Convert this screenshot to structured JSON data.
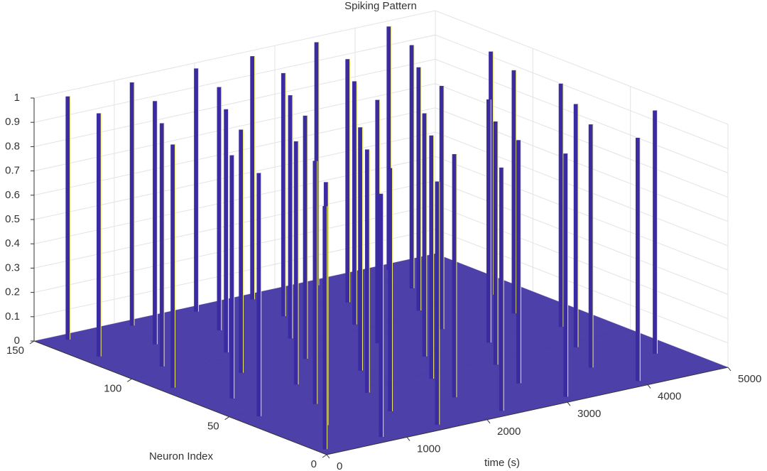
{
  "chart_data": {
    "type": "spikes3d",
    "title": "Spiking Pattern",
    "xlabel": "time (s)",
    "ylabel": "Neuron Index",
    "xlim": [
      0,
      5000
    ],
    "xticks": [
      0,
      1000,
      2000,
      3000,
      4000,
      5000
    ],
    "ylim": [
      0,
      150
    ],
    "yticks": [
      0,
      50,
      100,
      150
    ],
    "zlim": [
      0,
      1
    ],
    "zticks": [
      0,
      0.1,
      0.2,
      0.3,
      0.4,
      0.5,
      0.6,
      0.7,
      0.8,
      0.9,
      1
    ],
    "grid": true,
    "color": "#3a2ca0",
    "edge_color": "#f2ee6a",
    "spikes": {
      "time": [
        300,
        1100,
        1900,
        2600,
        3400,
        4300,
        200,
        900,
        1700,
        2500,
        3300,
        4100,
        500,
        1300,
        2100,
        2900,
        3700,
        4600,
        150,
        1000,
        1800,
        2700,
        3500,
        4400,
        400,
        1200,
        2000,
        2800,
        3600,
        4500,
        250,
        950,
        1600,
        2400,
        3200,
        4200,
        600,
        1400,
        2200,
        3000,
        3900,
        4700,
        100,
        800,
        1500,
        2300,
        3100,
        4000
      ],
      "neuron": [
        145,
        145,
        145,
        145,
        145,
        145,
        125,
        125,
        125,
        125,
        125,
        125,
        105,
        105,
        105,
        105,
        105,
        105,
        85,
        85,
        85,
        85,
        85,
        85,
        65,
        65,
        65,
        65,
        65,
        65,
        45,
        45,
        45,
        45,
        45,
        45,
        25,
        25,
        25,
        25,
        25,
        25,
        5,
        5,
        5,
        5,
        5,
        5
      ],
      "z": [
        1,
        1,
        1,
        1,
        1,
        1,
        1,
        1,
        1,
        1,
        1,
        1,
        1,
        1,
        1,
        1,
        1,
        1,
        1,
        1,
        1,
        1,
        1,
        1,
        1,
        1,
        1,
        1,
        1,
        1,
        1,
        1,
        1,
        1,
        1,
        1,
        1,
        1,
        1,
        1,
        1,
        1,
        1,
        1,
        1,
        1,
        1,
        1
      ]
    }
  }
}
